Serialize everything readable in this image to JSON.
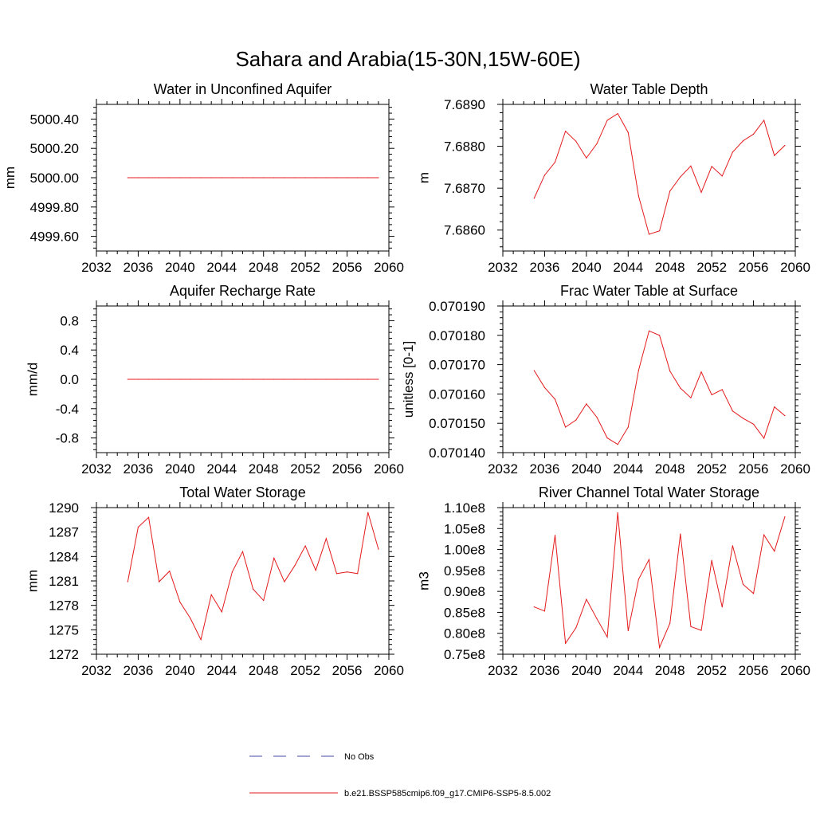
{
  "figure_title": "Sahara and Arabia(15-30N,15W-60E)",
  "colors": {
    "model_line": "#e41a1c",
    "obs_line": "#4a4aa8",
    "axis": "#000000"
  },
  "legend": {
    "items": [
      {
        "label": "No Obs",
        "style": "dashed",
        "color": "#4a4aa8"
      },
      {
        "label": "b.e21.BSSP585cmip6.f09_g17.CMIP6-SSP5-8.5.002",
        "style": "solid",
        "color": "#e41a1c"
      }
    ]
  },
  "chart_data": [
    {
      "type": "line",
      "title": "Water in Unconfined Aquifer",
      "ylabel": "mm",
      "xlim": [
        2032,
        2060
      ],
      "xticks": [
        "2032",
        "2036",
        "2040",
        "2044",
        "2048",
        "2052",
        "2056",
        "2060"
      ],
      "ylim": [
        4999.5,
        5000.5
      ],
      "yticks": [
        "4999.60",
        "4999.80",
        "5000.00",
        "5000.20",
        "5000.40"
      ],
      "x": [
        2035,
        2036,
        2037,
        2038,
        2039,
        2040,
        2041,
        2042,
        2043,
        2044,
        2045,
        2046,
        2047,
        2048,
        2049,
        2050,
        2051,
        2052,
        2053,
        2054,
        2055,
        2056,
        2057,
        2058,
        2059
      ],
      "series": [
        {
          "values": [
            5000,
            5000,
            5000,
            5000,
            5000,
            5000,
            5000,
            5000,
            5000,
            5000,
            5000,
            5000,
            5000,
            5000,
            5000,
            5000,
            5000,
            5000,
            5000,
            5000,
            5000,
            5000,
            5000,
            5000,
            5000
          ]
        }
      ]
    },
    {
      "type": "line",
      "title": "Water Table Depth",
      "ylabel": "m",
      "xlim": [
        2032,
        2060
      ],
      "xticks": [
        "2032",
        "2036",
        "2040",
        "2044",
        "2048",
        "2052",
        "2056",
        "2060"
      ],
      "ylim": [
        7.6855,
        7.689
      ],
      "yticks": [
        "7.6860",
        "7.6870",
        "7.6880",
        "7.6890"
      ],
      "x": [
        2035,
        2036,
        2037,
        2038,
        2039,
        2040,
        2041,
        2042,
        2043,
        2044,
        2045,
        2046,
        2047,
        2048,
        2049,
        2050,
        2051,
        2052,
        2053,
        2054,
        2055,
        2056,
        2057,
        2058,
        2059
      ],
      "series": [
        {
          "values": [
            7.68676,
            7.68731,
            7.68762,
            7.68836,
            7.68812,
            7.68772,
            7.68806,
            7.68862,
            7.68878,
            7.68833,
            7.68681,
            7.6859,
            7.68598,
            7.68693,
            7.68727,
            7.68753,
            7.6869,
            7.68752,
            7.68729,
            7.68786,
            7.68813,
            7.68829,
            7.68862,
            7.68778,
            7.68802
          ]
        }
      ]
    },
    {
      "type": "line",
      "title": "Aquifer Recharge Rate",
      "ylabel": "mm/d",
      "xlim": [
        2032,
        2060
      ],
      "xticks": [
        "2032",
        "2036",
        "2040",
        "2044",
        "2048",
        "2052",
        "2056",
        "2060"
      ],
      "ylim": [
        -1.0,
        1.0
      ],
      "yticks": [
        "-0.8",
        "-0.4",
        "0.0",
        "0.4",
        "0.8"
      ],
      "x": [
        2035,
        2036,
        2037,
        2038,
        2039,
        2040,
        2041,
        2042,
        2043,
        2044,
        2045,
        2046,
        2047,
        2048,
        2049,
        2050,
        2051,
        2052,
        2053,
        2054,
        2055,
        2056,
        2057,
        2058,
        2059
      ],
      "series": [
        {
          "values": [
            0,
            0,
            0,
            0,
            0,
            0,
            0,
            0,
            0,
            0,
            0,
            0,
            0,
            0,
            0,
            0,
            0,
            0,
            0,
            0,
            0,
            0,
            0,
            0,
            0
          ]
        }
      ]
    },
    {
      "type": "line",
      "title": "Frac Water Table at Surface",
      "ylabel": "unitless [0-1]",
      "xlim": [
        2032,
        2060
      ],
      "xticks": [
        "2032",
        "2036",
        "2040",
        "2044",
        "2048",
        "2052",
        "2056",
        "2060"
      ],
      "ylim": [
        0.07014,
        0.07019
      ],
      "yticks": [
        "0.070140",
        "0.070150",
        "0.070160",
        "0.070170",
        "0.070180",
        "0.070190"
      ],
      "x": [
        2035,
        2036,
        2037,
        2038,
        2039,
        2040,
        2041,
        2042,
        2043,
        2044,
        2045,
        2046,
        2047,
        2048,
        2049,
        2050,
        2051,
        2052,
        2053,
        2054,
        2055,
        2056,
        2057,
        2058,
        2059
      ],
      "series": [
        {
          "values": [
            0.070168,
            0.0701622,
            0.0701582,
            0.0701487,
            0.0701511,
            0.0701566,
            0.0701521,
            0.070145,
            0.0701428,
            0.0701487,
            0.0701681,
            0.0701815,
            0.07018,
            0.0701678,
            0.070162,
            0.0701587,
            0.0701675,
            0.0701597,
            0.0701615,
            0.0701542,
            0.0701517,
            0.0701497,
            0.0701449,
            0.0701556,
            0.0701526
          ]
        }
      ]
    },
    {
      "type": "line",
      "title": "Total Water Storage",
      "ylabel": "mm",
      "xlim": [
        2032,
        2060
      ],
      "xticks": [
        "2032",
        "2036",
        "2040",
        "2044",
        "2048",
        "2052",
        "2056",
        "2060"
      ],
      "ylim": [
        1272,
        1290
      ],
      "yticks": [
        "1272",
        "1275",
        "1278",
        "1281",
        "1284",
        "1287",
        "1290"
      ],
      "x": [
        2035,
        2036,
        2037,
        2038,
        2039,
        2040,
        2041,
        2042,
        2043,
        2044,
        2045,
        2046,
        2047,
        2048,
        2049,
        2050,
        2051,
        2052,
        2053,
        2054,
        2055,
        2056,
        2057,
        2058,
        2059
      ],
      "series": [
        {
          "values": [
            1280.9,
            1287.6,
            1288.8,
            1280.9,
            1282.2,
            1278.4,
            1276.4,
            1273.8,
            1279.3,
            1277.2,
            1282.1,
            1284.6,
            1280.0,
            1278.6,
            1283.8,
            1280.9,
            1282.9,
            1285.3,
            1282.3,
            1286.2,
            1281.9,
            1282.1,
            1281.9,
            1289.4,
            1284.9
          ]
        }
      ]
    },
    {
      "type": "line",
      "title": "River Channel Total Water Storage",
      "ylabel": "m3",
      "xlim": [
        2032,
        2060
      ],
      "xticks": [
        "2032",
        "2036",
        "2040",
        "2044",
        "2048",
        "2052",
        "2056",
        "2060"
      ],
      "ylim": [
        75000000.0,
        110000000.0
      ],
      "yticks": [
        "0.75e8",
        "0.80e8",
        "0.85e8",
        "0.90e8",
        "0.95e8",
        "1.00e8",
        "1.05e8",
        "1.10e8"
      ],
      "x": [
        2035,
        2036,
        2037,
        2038,
        2039,
        2040,
        2041,
        2042,
        2043,
        2044,
        2045,
        2046,
        2047,
        2048,
        2049,
        2050,
        2051,
        2052,
        2053,
        2054,
        2055,
        2056,
        2057,
        2058,
        2059
      ],
      "series": [
        {
          "values": [
            86300000,
            85300000,
            103400000,
            77600000,
            81300000,
            88100000,
            83500000,
            79100000,
            108800000,
            80600000,
            92900000,
            97600000,
            76600000,
            82400000,
            103700000,
            81600000,
            80700000,
            97400000,
            86300000,
            100900000,
            91700000,
            89500000,
            103500000,
            99600000,
            107800000
          ]
        }
      ]
    }
  ]
}
